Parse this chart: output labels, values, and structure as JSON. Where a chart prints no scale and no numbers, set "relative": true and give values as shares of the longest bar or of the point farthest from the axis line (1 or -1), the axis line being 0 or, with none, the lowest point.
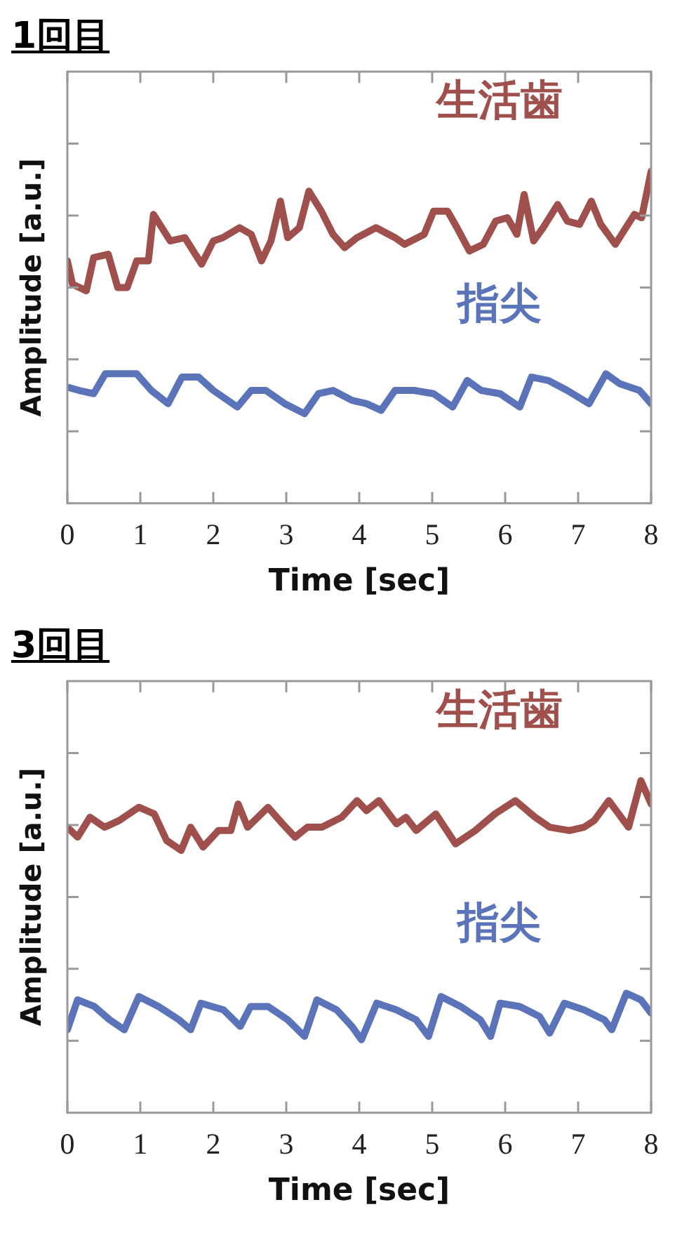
{
  "chart_data": [
    {
      "type": "line",
      "title": "1回目",
      "xlabel": "Time [sec]",
      "ylabel": "Amplitude [a.u.]",
      "relative": true,
      "xlim": [
        0,
        8
      ],
      "xticks": [
        0,
        1,
        2,
        3,
        4,
        5,
        6,
        7,
        8
      ],
      "series": [
        {
          "name": "生活歯",
          "color": "#a0504c",
          "x": [
            0,
            0.07,
            0.26,
            0.36,
            0.56,
            0.69,
            0.82,
            0.95,
            1.11,
            1.18,
            1.41,
            1.61,
            1.84,
            2.0,
            2.13,
            2.36,
            2.52,
            2.66,
            2.79,
            2.92,
            3.02,
            3.18,
            3.31,
            3.48,
            3.64,
            3.8,
            3.97,
            4.23,
            4.49,
            4.62,
            4.89,
            5.02,
            5.21,
            5.34,
            5.51,
            5.7,
            5.87,
            6.03,
            6.16,
            6.26,
            6.39,
            6.52,
            6.72,
            6.85,
            7.02,
            7.18,
            7.31,
            7.51,
            7.77,
            7.87,
            8.0
          ],
          "values": [
            0.73,
            0.66,
            0.64,
            0.74,
            0.75,
            0.65,
            0.65,
            0.73,
            0.73,
            0.87,
            0.79,
            0.8,
            0.72,
            0.79,
            0.8,
            0.83,
            0.81,
            0.73,
            0.79,
            0.91,
            0.8,
            0.83,
            0.94,
            0.88,
            0.81,
            0.77,
            0.8,
            0.83,
            0.8,
            0.78,
            0.81,
            0.88,
            0.88,
            0.83,
            0.76,
            0.78,
            0.85,
            0.86,
            0.81,
            0.93,
            0.79,
            0.83,
            0.9,
            0.85,
            0.84,
            0.91,
            0.84,
            0.78,
            0.87,
            0.86,
            1.0
          ]
        },
        {
          "name": "指尖",
          "color": "#5b73b8",
          "x": [
            0,
            0.16,
            0.36,
            0.52,
            0.75,
            0.95,
            1.15,
            1.38,
            1.57,
            1.8,
            2.0,
            2.33,
            2.52,
            2.72,
            2.98,
            3.25,
            3.44,
            3.64,
            3.9,
            4.1,
            4.3,
            4.49,
            4.75,
            5.02,
            5.28,
            5.48,
            5.67,
            5.93,
            6.2,
            6.36,
            6.59,
            6.85,
            7.15,
            7.38,
            7.57,
            7.84,
            8.0
          ],
          "values": [
            0.35,
            0.34,
            0.33,
            0.39,
            0.39,
            0.39,
            0.34,
            0.3,
            0.38,
            0.38,
            0.34,
            0.29,
            0.34,
            0.34,
            0.3,
            0.27,
            0.33,
            0.34,
            0.31,
            0.3,
            0.28,
            0.34,
            0.34,
            0.33,
            0.29,
            0.37,
            0.34,
            0.33,
            0.29,
            0.38,
            0.37,
            0.34,
            0.3,
            0.39,
            0.36,
            0.34,
            0.3
          ]
        }
      ]
    },
    {
      "type": "line",
      "title": "3回目",
      "xlabel": "Time [sec]",
      "ylabel": "Amplitude [a.u.]",
      "relative": true,
      "xlim": [
        0,
        8
      ],
      "xticks": [
        0,
        1,
        2,
        3,
        4,
        5,
        6,
        7,
        8
      ],
      "series": [
        {
          "name": "生活歯",
          "color": "#a0504c",
          "x": [
            0,
            0.14,
            0.31,
            0.51,
            0.71,
            0.98,
            1.19,
            1.36,
            1.56,
            1.69,
            1.86,
            2.07,
            2.24,
            2.34,
            2.47,
            2.75,
            2.95,
            3.12,
            3.29,
            3.49,
            3.76,
            3.97,
            4.1,
            4.27,
            4.51,
            4.64,
            4.78,
            5.05,
            5.32,
            5.59,
            5.86,
            6.14,
            6.41,
            6.61,
            6.88,
            7.08,
            7.22,
            7.42,
            7.69,
            7.86,
            8.0
          ],
          "values": [
            0.86,
            0.83,
            0.89,
            0.86,
            0.88,
            0.92,
            0.9,
            0.82,
            0.79,
            0.86,
            0.8,
            0.85,
            0.85,
            0.93,
            0.86,
            0.92,
            0.87,
            0.83,
            0.86,
            0.86,
            0.89,
            0.94,
            0.91,
            0.94,
            0.87,
            0.89,
            0.85,
            0.9,
            0.81,
            0.85,
            0.9,
            0.94,
            0.89,
            0.86,
            0.85,
            0.86,
            0.88,
            0.94,
            0.86,
            1.0,
            0.93
          ]
        },
        {
          "name": "指尖",
          "color": "#5b73b8",
          "x": [
            0,
            0.14,
            0.37,
            0.58,
            0.78,
            0.98,
            1.25,
            1.53,
            1.69,
            1.83,
            2.14,
            2.37,
            2.51,
            2.75,
            3.02,
            3.25,
            3.42,
            3.69,
            3.9,
            4.03,
            4.24,
            4.51,
            4.78,
            4.95,
            5.12,
            5.39,
            5.66,
            5.8,
            5.93,
            6.2,
            6.47,
            6.61,
            6.81,
            7.08,
            7.36,
            7.46,
            7.66,
            7.86,
            8.0
          ],
          "values": [
            0.25,
            0.34,
            0.32,
            0.28,
            0.25,
            0.35,
            0.32,
            0.28,
            0.25,
            0.33,
            0.31,
            0.26,
            0.32,
            0.32,
            0.28,
            0.23,
            0.34,
            0.31,
            0.26,
            0.22,
            0.33,
            0.31,
            0.28,
            0.23,
            0.35,
            0.32,
            0.28,
            0.23,
            0.33,
            0.32,
            0.29,
            0.24,
            0.33,
            0.31,
            0.28,
            0.25,
            0.36,
            0.34,
            0.3
          ]
        }
      ]
    }
  ]
}
